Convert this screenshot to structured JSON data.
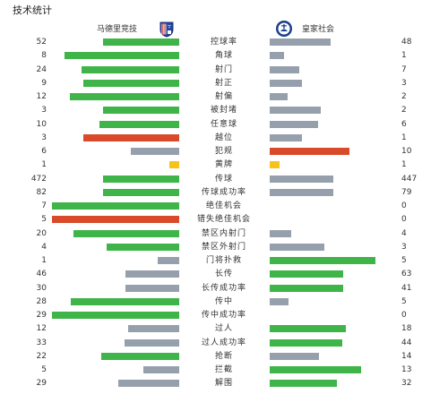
{
  "header": {
    "title": "技术统计"
  },
  "teams": {
    "home": "马德里竞技",
    "away": "皇家社会"
  },
  "colors": {
    "good": "#3fb449",
    "neutral": "#96a0ad",
    "red": "#d94a2b",
    "yellow": "#f7c31a"
  },
  "stats": [
    {
      "label": "控球率",
      "home": "52",
      "away": "48",
      "home_fill": 0.6,
      "away_fill": 0.48,
      "home_color": "good",
      "away_color": "neutral"
    },
    {
      "label": "角球",
      "home": "8",
      "away": "1",
      "home_fill": 0.9,
      "away_fill": 0.11,
      "home_color": "good",
      "away_color": "neutral"
    },
    {
      "label": "射门",
      "home": "24",
      "away": "7",
      "home_fill": 0.77,
      "away_fill": 0.23,
      "home_color": "good",
      "away_color": "neutral"
    },
    {
      "label": "射正",
      "home": "9",
      "away": "3",
      "home_fill": 0.75,
      "away_fill": 0.25,
      "home_color": "good",
      "away_color": "neutral"
    },
    {
      "label": "射偏",
      "home": "12",
      "away": "2",
      "home_fill": 0.86,
      "away_fill": 0.14,
      "home_color": "good",
      "away_color": "neutral"
    },
    {
      "label": "被封堵",
      "home": "3",
      "away": "2",
      "home_fill": 0.6,
      "away_fill": 0.4,
      "home_color": "good",
      "away_color": "neutral"
    },
    {
      "label": "任意球",
      "home": "10",
      "away": "6",
      "home_fill": 0.63,
      "away_fill": 0.38,
      "home_color": "good",
      "away_color": "neutral"
    },
    {
      "label": "越位",
      "home": "3",
      "away": "1",
      "home_fill": 0.75,
      "away_fill": 0.25,
      "home_color": "red",
      "away_color": "neutral"
    },
    {
      "label": "犯规",
      "home": "6",
      "away": "10",
      "home_fill": 0.38,
      "away_fill": 0.63,
      "home_color": "neutral",
      "away_color": "red"
    },
    {
      "label": "黄牌",
      "home": "1",
      "away": "1",
      "home_fill": 0.08,
      "away_fill": 0.08,
      "home_color": "yellow",
      "away_color": "yellow"
    },
    {
      "label": "传球",
      "home": "472",
      "away": "447",
      "home_fill": 0.6,
      "away_fill": 0.5,
      "home_color": "good",
      "away_color": "neutral"
    },
    {
      "label": "传球成功率",
      "home": "82",
      "away": "79",
      "home_fill": 0.6,
      "away_fill": 0.5,
      "home_color": "good",
      "away_color": "neutral"
    },
    {
      "label": "绝佳机会",
      "home": "7",
      "away": "0",
      "home_fill": 1.0,
      "away_fill": 0.0,
      "home_color": "good",
      "away_color": "neutral"
    },
    {
      "label": "错失绝佳机会",
      "home": "5",
      "away": "0",
      "home_fill": 1.0,
      "away_fill": 0.0,
      "home_color": "red",
      "away_color": "neutral"
    },
    {
      "label": "禁区内射门",
      "home": "20",
      "away": "4",
      "home_fill": 0.83,
      "away_fill": 0.17,
      "home_color": "good",
      "away_color": "neutral"
    },
    {
      "label": "禁区外射门",
      "home": "4",
      "away": "3",
      "home_fill": 0.57,
      "away_fill": 0.43,
      "home_color": "good",
      "away_color": "neutral"
    },
    {
      "label": "门将扑救",
      "home": "1",
      "away": "5",
      "home_fill": 0.17,
      "away_fill": 0.83,
      "home_color": "neutral",
      "away_color": "good"
    },
    {
      "label": "长传",
      "home": "46",
      "away": "63",
      "home_fill": 0.42,
      "away_fill": 0.58,
      "home_color": "neutral",
      "away_color": "good"
    },
    {
      "label": "长传成功率",
      "home": "30",
      "away": "41",
      "home_fill": 0.42,
      "away_fill": 0.58,
      "home_color": "neutral",
      "away_color": "good"
    },
    {
      "label": "传中",
      "home": "28",
      "away": "5",
      "home_fill": 0.85,
      "away_fill": 0.15,
      "home_color": "good",
      "away_color": "neutral"
    },
    {
      "label": "传中成功率",
      "home": "29",
      "away": "0",
      "home_fill": 1.0,
      "away_fill": 0.0,
      "home_color": "good",
      "away_color": "neutral"
    },
    {
      "label": "过人",
      "home": "12",
      "away": "18",
      "home_fill": 0.4,
      "away_fill": 0.6,
      "home_color": "neutral",
      "away_color": "good"
    },
    {
      "label": "过人成功率",
      "home": "33",
      "away": "44",
      "home_fill": 0.43,
      "away_fill": 0.57,
      "home_color": "neutral",
      "away_color": "good"
    },
    {
      "label": "抢断",
      "home": "22",
      "away": "14",
      "home_fill": 0.61,
      "away_fill": 0.39,
      "home_color": "good",
      "away_color": "neutral"
    },
    {
      "label": "拦截",
      "home": "5",
      "away": "13",
      "home_fill": 0.28,
      "away_fill": 0.72,
      "home_color": "neutral",
      "away_color": "good"
    },
    {
      "label": "解围",
      "home": "29",
      "away": "32",
      "home_fill": 0.48,
      "away_fill": 0.53,
      "home_color": "neutral",
      "away_color": "good"
    }
  ]
}
